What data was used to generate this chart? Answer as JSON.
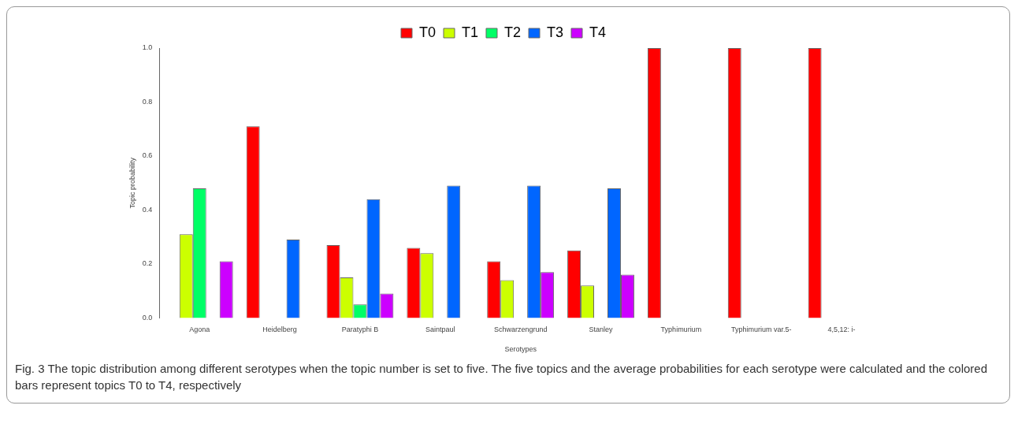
{
  "chart_data": {
    "type": "bar",
    "xlabel": "Serotypes",
    "ylabel": "Topic probability",
    "categories": [
      "Agona",
      "Heidelberg",
      "Paratyphi B",
      "Saintpaul",
      "Schwarzengrund",
      "Stanley",
      "Typhimurium",
      "Typhimurium var.5-",
      "4,5,12: i-"
    ],
    "series": [
      {
        "name": "T0",
        "color": "#ff0000",
        "values": [
          0,
          0.71,
          0.27,
          0.26,
          0.21,
          0.25,
          1,
          1,
          1
        ]
      },
      {
        "name": "T1",
        "color": "#ccff00",
        "values": [
          0.31,
          0,
          0.15,
          0.24,
          0.14,
          0.12,
          0,
          0,
          0
        ]
      },
      {
        "name": "T2",
        "color": "#00ff66",
        "values": [
          0.48,
          0,
          0.05,
          0,
          0,
          0,
          0,
          0,
          0
        ]
      },
      {
        "name": "T3",
        "color": "#0066ff",
        "values": [
          0,
          0.29,
          0.44,
          0.49,
          0.49,
          0.48,
          0,
          0,
          0
        ]
      },
      {
        "name": "T4",
        "color": "#cc00ff",
        "values": [
          0.21,
          0,
          0.09,
          0,
          0.17,
          0.16,
          0,
          0,
          0
        ]
      }
    ],
    "ylim": [
      0,
      1
    ],
    "yticks": [
      {
        "value": 0,
        "label": "0.0"
      },
      {
        "value": 0.2,
        "label": "0.2"
      },
      {
        "value": 0.4,
        "label": "0.4"
      },
      {
        "value": 0.6,
        "label": "0.6"
      },
      {
        "value": 0.8,
        "label": "0.8"
      },
      {
        "value": 1,
        "label": "1.0"
      }
    ],
    "grid": false,
    "legend": "top",
    "annotations": [
      "Fig. 3 The topic distribution among different serotypes when the topic number is set to five. The five topics and the average probabilities for each serotype were calculated and the colored bars represent topics T0 to T4, respectively"
    ]
  }
}
